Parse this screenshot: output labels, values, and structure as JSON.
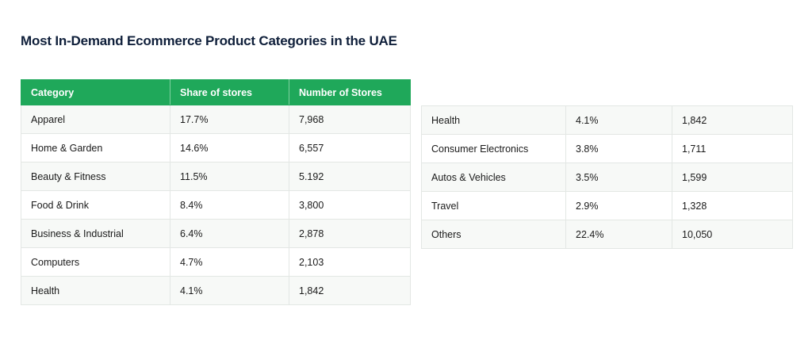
{
  "title": "Most In-Demand Ecommerce Product Categories in the UAE",
  "colors": {
    "header_bg": "#1fa85a",
    "header_text": "#ffffff",
    "row_alt_bg": "#f7f9f7",
    "title_text": "#0f1f3a"
  },
  "chart_data": {
    "type": "table",
    "title": "Most In-Demand Ecommerce Product Categories in the UAE",
    "columns": [
      "Category",
      "Share of stores",
      "Number of Stores"
    ],
    "rows": [
      [
        "Apparel",
        "17.7%",
        "7,968"
      ],
      [
        "Home & Garden",
        "14.6%",
        "6,557"
      ],
      [
        "Beauty & Fitness",
        "11.5%",
        "5.192"
      ],
      [
        "Food & Drink",
        "8.4%",
        "3,800"
      ],
      [
        "Business & Industrial",
        "6.4%",
        "2,878"
      ],
      [
        "Computers",
        "4.7%",
        "2,103"
      ],
      [
        "Health",
        "4.1%",
        "1,842"
      ]
    ],
    "continued_rows": [
      [
        "Health",
        "4.1%",
        "1,842"
      ],
      [
        "Consumer Electronics",
        "3.8%",
        "1,711"
      ],
      [
        "Autos & Vehicles",
        "3.5%",
        "1,599"
      ],
      [
        "Travel",
        "2.9%",
        "1,328"
      ],
      [
        "Others",
        "22.4%",
        "10,050"
      ]
    ]
  }
}
